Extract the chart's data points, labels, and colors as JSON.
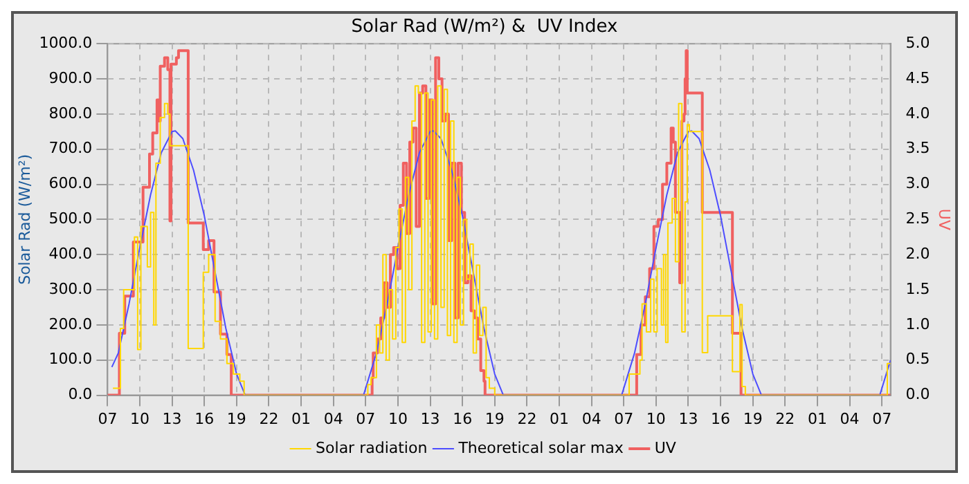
{
  "chart_data": {
    "type": "line",
    "title": "Solar Rad (W/m²) &  UV Index",
    "ylabel": "Solar Rad (W/m²)",
    "y2label": "UV",
    "legend": "bottom",
    "grid": true,
    "marker": "none",
    "xlim": [
      "--01-01T07:00",
      "--01-04T07:48"
    ],
    "xticks": [
      {
        "value": "--01-01T07:00",
        "label": "07"
      },
      {
        "value": "--01-01T10:00",
        "label": "10"
      },
      {
        "value": "--01-01T13:00",
        "label": "13"
      },
      {
        "value": "--01-01T16:00",
        "label": "16"
      },
      {
        "value": "--01-01T19:00",
        "label": "19"
      },
      {
        "value": "--01-01T22:00",
        "label": "22"
      },
      {
        "value": "--01-02T01:00",
        "label": "01"
      },
      {
        "value": "--01-02T04:00",
        "label": "04"
      },
      {
        "value": "--01-02T07:00",
        "label": "07"
      },
      {
        "value": "--01-02T10:00",
        "label": "10"
      },
      {
        "value": "--01-02T13:00",
        "label": "13"
      },
      {
        "value": "--01-02T16:00",
        "label": "16"
      },
      {
        "value": "--01-02T19:00",
        "label": "19"
      },
      {
        "value": "--01-02T22:00",
        "label": "22"
      },
      {
        "value": "--01-03T01:00",
        "label": "01"
      },
      {
        "value": "--01-03T04:00",
        "label": "04"
      },
      {
        "value": "--01-03T07:00",
        "label": "07"
      },
      {
        "value": "--01-03T10:00",
        "label": "10"
      },
      {
        "value": "--01-03T13:00",
        "label": "13"
      },
      {
        "value": "--01-03T16:00",
        "label": "16"
      },
      {
        "value": "--01-03T19:00",
        "label": "19"
      },
      {
        "value": "--01-03T22:00",
        "label": "22"
      },
      {
        "value": "--01-04T01:00",
        "label": "01"
      },
      {
        "value": "--01-04T04:00",
        "label": "04"
      },
      {
        "value": "--01-04T07:00",
        "label": "07"
      }
    ],
    "ylim": [
      0,
      1000
    ],
    "yticks": [
      {
        "value": 0,
        "label": "0.0"
      },
      {
        "value": 100,
        "label": "100.0"
      },
      {
        "value": 200,
        "label": "200.0"
      },
      {
        "value": 300,
        "label": "300.0"
      },
      {
        "value": 400,
        "label": "400.0"
      },
      {
        "value": 500,
        "label": "500.0"
      },
      {
        "value": 600,
        "label": "600.0"
      },
      {
        "value": 700,
        "label": "700.0"
      },
      {
        "value": 800,
        "label": "800.0"
      },
      {
        "value": 900,
        "label": "900.0"
      },
      {
        "value": 1000,
        "label": "1000.0"
      }
    ],
    "y2lim": [
      0,
      5
    ],
    "y2ticks": [
      {
        "value": 0,
        "label": "0.0"
      },
      {
        "value": 0.5,
        "label": "0.5"
      },
      {
        "value": 1,
        "label": "1.0"
      },
      {
        "value": 1.5,
        "label": "1.5"
      },
      {
        "value": 2,
        "label": "2.0"
      },
      {
        "value": 2.5,
        "label": "2.5"
      },
      {
        "value": 3,
        "label": "3.0"
      },
      {
        "value": 3.5,
        "label": "3.5"
      },
      {
        "value": 4,
        "label": "4.0"
      },
      {
        "value": 4.5,
        "label": "4.5"
      },
      {
        "value": 5,
        "label": "5.0"
      }
    ],
    "series": [
      {
        "name": "Solar radiation",
        "type": "step",
        "color": "#ffd700",
        "x": [
          "--01-01T07:30",
          "--01-01T08:12",
          "--01-01T08:30",
          "--01-01T09:30",
          "--01-01T09:48",
          "--01-01T10:06",
          "--01-01T10:42",
          "--01-01T11:00",
          "--01-01T11:18",
          "--01-01T11:30",
          "--01-01T11:54",
          "--01-01T12:18",
          "--01-01T12:36",
          "--01-01T12:48",
          "--01-01T13:00",
          "--01-01T14:30",
          "--01-01T15:54",
          "--01-01T16:24",
          "--01-01T17:00",
          "--01-01T17:30",
          "--01-01T18:06",
          "--01-01T18:42",
          "--01-01T19:18",
          "--01-01T19:42",
          "--01-02T06:54",
          "--01-02T07:12",
          "--01-02T07:30",
          "--01-02T08:00",
          "--01-02T08:18",
          "--01-02T08:36",
          "--01-02T08:54",
          "--01-02T09:12",
          "--01-02T09:30",
          "--01-02T09:48",
          "--01-02T10:06",
          "--01-02T10:24",
          "--01-02T10:42",
          "--01-02T11:00",
          "--01-02T11:18",
          "--01-02T11:36",
          "--01-02T11:54",
          "--01-02T12:12",
          "--01-02T12:30",
          "--01-02T12:48",
          "--01-02T13:06",
          "--01-02T13:24",
          "--01-02T13:42",
          "--01-02T14:00",
          "--01-02T14:18",
          "--01-02T14:36",
          "--01-02T14:54",
          "--01-02T15:12",
          "--01-02T15:30",
          "--01-02T15:48",
          "--01-02T16:06",
          "--01-02T16:24",
          "--01-02T16:42",
          "--01-02T17:00",
          "--01-02T17:18",
          "--01-02T17:36",
          "--01-02T17:54",
          "--01-02T18:12",
          "--01-02T18:30",
          "--01-02T19:00",
          "--01-03T06:54",
          "--01-03T07:30",
          "--01-03T08:06",
          "--01-03T08:30",
          "--01-03T08:42",
          "--01-03T09:06",
          "--01-03T09:30",
          "--01-03T09:48",
          "--01-03T10:06",
          "--01-03T10:30",
          "--01-03T10:42",
          "--01-03T10:54",
          "--01-03T11:06",
          "--01-03T11:30",
          "--01-03T11:48",
          "--01-03T12:06",
          "--01-03T12:24",
          "--01-03T12:42",
          "--01-03T12:54",
          "--01-03T13:06",
          "--01-03T14:18",
          "--01-03T14:48",
          "--01-03T17:06",
          "--01-03T17:48",
          "--01-03T18:00",
          "--01-03T18:18",
          "--01-04T07:06",
          "--01-04T07:30",
          "--01-04T07:48"
        ],
        "values": [
          20,
          190,
          300,
          450,
          130,
          480,
          365,
          520,
          200,
          660,
          790,
          830,
          800,
          710,
          710,
          133,
          350,
          400,
          210,
          160,
          90,
          60,
          40,
          0,
          0,
          30,
          50,
          200,
          120,
          400,
          100,
          300,
          160,
          420,
          530,
          150,
          620,
          300,
          780,
          880,
          860,
          150,
          860,
          180,
          840,
          160,
          880,
          250,
          870,
          170,
          780,
          150,
          620,
          200,
          500,
          330,
          430,
          120,
          370,
          170,
          250,
          50,
          20,
          0,
          0,
          60,
          60,
          100,
          260,
          180,
          330,
          180,
          360,
          200,
          400,
          150,
          490,
          560,
          380,
          830,
          180,
          550,
          770,
          750,
          121,
          226,
          67,
          258,
          25,
          0,
          0,
          90,
          90
        ]
      },
      {
        "name": "Theoretical solar max",
        "type": "line",
        "color": "#4d4dff",
        "x": [
          "--01-01T07:24",
          "--01-01T08:00",
          "--01-01T09:00",
          "--01-01T10:00",
          "--01-01T11:00",
          "--01-01T12:00",
          "--01-01T13:00",
          "--01-01T13:18",
          "--01-01T14:00",
          "--01-01T15:00",
          "--01-01T16:00",
          "--01-01T17:00",
          "--01-01T18:00",
          "--01-01T19:00",
          "--01-01T19:48",
          "--01-02T06:48",
          "--01-02T08:00",
          "--01-02T09:00",
          "--01-02T10:00",
          "--01-02T11:00",
          "--01-02T12:00",
          "--01-02T13:00",
          "--01-02T13:18",
          "--01-02T14:00",
          "--01-02T15:00",
          "--01-02T16:00",
          "--01-02T17:00",
          "--01-02T18:00",
          "--01-02T19:00",
          "--01-02T19:48",
          "--01-03T06:48",
          "--01-03T08:00",
          "--01-03T09:00",
          "--01-03T10:00",
          "--01-03T11:00",
          "--01-03T12:00",
          "--01-03T13:00",
          "--01-03T13:18",
          "--01-03T14:00",
          "--01-03T15:00",
          "--01-03T16:00",
          "--01-03T17:00",
          "--01-03T18:00",
          "--01-03T19:00",
          "--01-03T19:48",
          "--01-04T06:48",
          "--01-04T07:48"
        ],
        "values": [
          80,
          120,
          260,
          420,
          570,
          690,
          750,
          752,
          730,
          640,
          510,
          350,
          190,
          60,
          0,
          0,
          120,
          260,
          420,
          570,
          690,
          750,
          752,
          730,
          640,
          510,
          350,
          190,
          60,
          0,
          0,
          120,
          260,
          420,
          570,
          690,
          750,
          752,
          730,
          640,
          510,
          350,
          190,
          60,
          0,
          0,
          100
        ]
      },
      {
        "name": "UV",
        "type": "step",
        "color": "#f06060",
        "axis": "y2",
        "x": [
          "--01-01T07:00",
          "--01-01T08:00",
          "--01-01T08:06",
          "--01-01T08:36",
          "--01-01T09:24",
          "--01-01T10:18",
          "--01-01T10:54",
          "--01-01T11:12",
          "--01-01T11:36",
          "--01-01T11:48",
          "--01-01T11:54",
          "--01-01T12:18",
          "--01-01T12:36",
          "--01-01T12:48",
          "--01-01T12:54",
          "--01-01T13:24",
          "--01-01T13:36",
          "--01-01T14:30",
          "--01-01T15:54",
          "--01-01T16:24",
          "--01-01T16:54",
          "--01-01T17:30",
          "--01-01T18:06",
          "--01-01T18:30",
          "--01-02T07:36",
          "--01-02T07:42",
          "--01-02T07:48",
          "--01-02T08:06",
          "--01-02T08:24",
          "--01-02T08:42",
          "--01-02T09:00",
          "--01-02T09:18",
          "--01-02T09:36",
          "--01-02T09:54",
          "--01-02T10:12",
          "--01-02T10:30",
          "--01-02T10:48",
          "--01-02T11:06",
          "--01-02T11:24",
          "--01-02T11:42",
          "--01-02T12:00",
          "--01-02T12:18",
          "--01-02T12:36",
          "--01-02T12:54",
          "--01-02T13:12",
          "--01-02T13:30",
          "--01-02T13:48",
          "--01-02T14:06",
          "--01-02T14:24",
          "--01-02T14:42",
          "--01-02T15:00",
          "--01-02T15:18",
          "--01-02T15:36",
          "--01-02T15:54",
          "--01-02T16:12",
          "--01-02T16:30",
          "--01-02T16:48",
          "--01-02T17:06",
          "--01-02T17:24",
          "--01-02T17:42",
          "--01-02T18:00",
          "--01-02T18:06",
          "--01-03T08:12",
          "--01-03T08:36",
          "--01-03T09:00",
          "--01-03T09:24",
          "--01-03T09:48",
          "--01-03T10:12",
          "--01-03T10:36",
          "--01-03T11:00",
          "--01-03T11:24",
          "--01-03T11:36",
          "--01-03T11:48",
          "--01-03T12:12",
          "--01-03T12:24",
          "--01-03T12:36",
          "--01-03T12:42",
          "--01-03T12:48",
          "--01-03T12:54",
          "--01-03T14:18",
          "--01-03T17:06",
          "--01-03T17:54",
          "--01-04T07:48"
        ],
        "values": [
          0,
          0,
          0.88,
          1.41,
          2.18,
          2.96,
          3.43,
          3.73,
          4.2,
          3.9,
          4.68,
          4.8,
          4.63,
          2.48,
          4.71,
          4.8,
          4.9,
          2.45,
          2.07,
          2.2,
          1.47,
          0.87,
          0.58,
          0,
          0.25,
          0.6,
          0.6,
          0.8,
          1.1,
          1.6,
          1.25,
          2.0,
          2.1,
          1.8,
          2.7,
          3.3,
          2.3,
          3.6,
          3.8,
          2.4,
          4.3,
          4.4,
          2.8,
          4.2,
          1.3,
          4.8,
          4.5,
          3.9,
          4.0,
          2.2,
          3.3,
          1.1,
          3.3,
          2.6,
          1.6,
          1.7,
          1.2,
          1.1,
          0.8,
          0.35,
          0.2,
          0,
          0.58,
          1.0,
          1.4,
          1.8,
          2.4,
          2.5,
          3.0,
          3.3,
          3.8,
          3.6,
          2.6,
          1.6,
          3.9,
          4.0,
          4.5,
          4.9,
          4.3,
          2.6,
          0.88,
          0,
          0
        ]
      }
    ]
  }
}
